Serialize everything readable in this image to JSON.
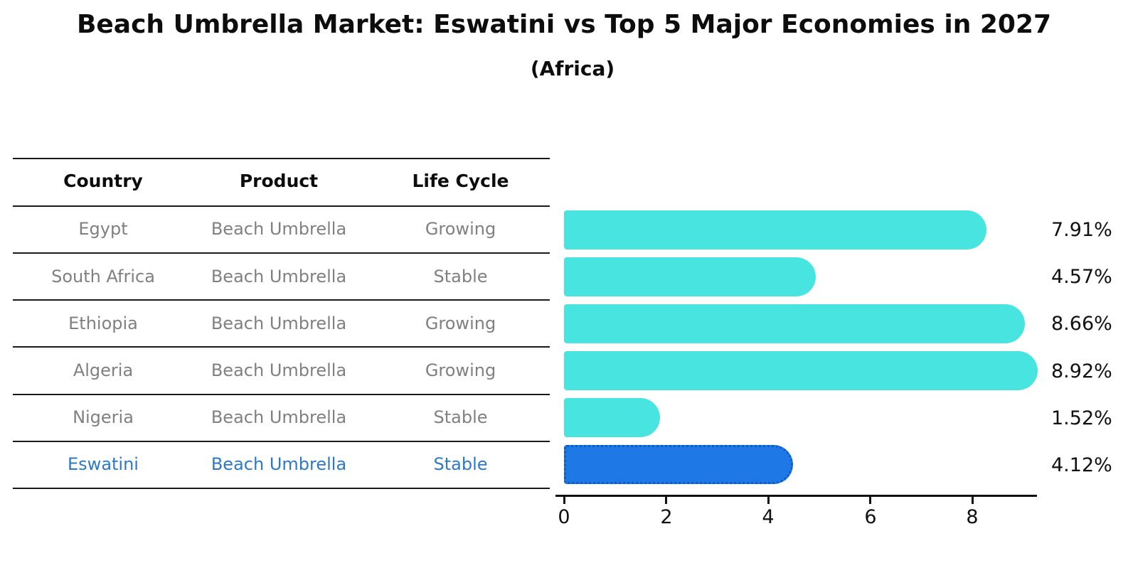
{
  "title": "Beach Umbrella Market: Eswatini vs Top 5 Major Economies in 2027",
  "subtitle": "(Africa)",
  "colors": {
    "bar_default": "#48e5e0",
    "bar_highlight": "#1e78e5",
    "bar_highlight_border": "#0f5bc4",
    "table_text": "#808080",
    "highlight_text": "#2c79c9",
    "header_text": "#0d0d0d"
  },
  "table": {
    "headers": [
      "Country",
      "Product",
      "Life Cycle"
    ],
    "rows": [
      {
        "country": "Egypt",
        "product": "Beach Umbrella",
        "life_cycle": "Growing",
        "highlight": false
      },
      {
        "country": "South Africa",
        "product": "Beach Umbrella",
        "life_cycle": "Stable",
        "highlight": false
      },
      {
        "country": "Ethiopia",
        "product": "Beach Umbrella",
        "life_cycle": "Growing",
        "highlight": false
      },
      {
        "country": "Algeria",
        "product": "Beach Umbrella",
        "life_cycle": "Growing",
        "highlight": false
      },
      {
        "country": "Nigeria",
        "product": "Beach Umbrella",
        "life_cycle": "Stable",
        "highlight": false
      },
      {
        "country": "Eswatini",
        "product": "Beach Umbrella",
        "life_cycle": "Stable",
        "highlight": true
      }
    ]
  },
  "chart_data": {
    "type": "bar",
    "orientation": "horizontal",
    "categories": [
      "Egypt",
      "South Africa",
      "Ethiopia",
      "Algeria",
      "Nigeria",
      "Eswatini"
    ],
    "values": [
      7.91,
      4.57,
      8.66,
      8.92,
      1.52,
      4.12
    ],
    "value_labels": [
      "7.91%",
      "4.57%",
      "8.66%",
      "8.92%",
      "1.52%",
      "4.12%"
    ],
    "highlight_index": 5,
    "title": "Beach Umbrella Market: Eswatini vs Top 5 Major Economies in 2027",
    "subtitle": "(Africa)",
    "xlabel": "",
    "ylabel": "",
    "xlim": [
      0,
      9.3
    ],
    "x_ticks": [
      0,
      2,
      4,
      6,
      8
    ],
    "x_tick_labels": [
      "0",
      "2",
      "4",
      "6",
      "8"
    ],
    "grid": false,
    "legend": false
  }
}
